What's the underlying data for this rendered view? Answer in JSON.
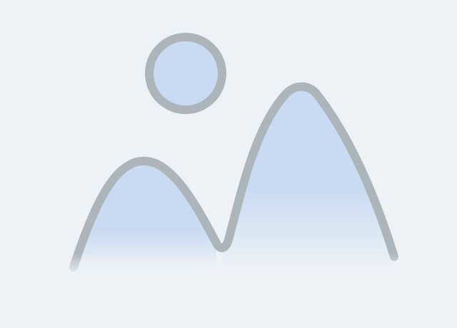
{
  "image_placeholder": {
    "icon": "image-placeholder-icon",
    "colors": {
      "background": "#eef2f5",
      "outline": "#adb5bb",
      "fill": "#c9dbf3",
      "fill_fade": "#eef2f5"
    }
  }
}
